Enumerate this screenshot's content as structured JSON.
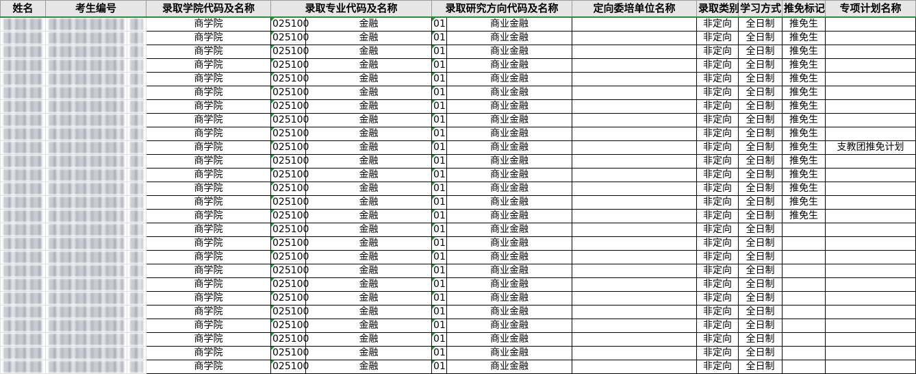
{
  "headers": [
    "姓名",
    "考生编号",
    "录取学院代码及名称",
    "录取专业代码及名称",
    "录取研究方向代码及名称",
    "定向委培单位名称",
    "录取类别",
    "学习方式",
    "推免标记",
    "专项计划名称"
  ],
  "default_row": {
    "college": "商学院",
    "major_code": "025100",
    "major_name": "金融",
    "dir_code": "01",
    "dir_name": "商业金融",
    "category": "非定向",
    "mode": "全日制"
  },
  "rows": [
    {
      "tuimian": "推免生",
      "plan": ""
    },
    {
      "tuimian": "推免生",
      "plan": ""
    },
    {
      "tuimian": "推免生",
      "plan": ""
    },
    {
      "tuimian": "推免生",
      "plan": ""
    },
    {
      "tuimian": "推免生",
      "plan": ""
    },
    {
      "tuimian": "推免生",
      "plan": ""
    },
    {
      "tuimian": "推免生",
      "plan": ""
    },
    {
      "tuimian": "推免生",
      "plan": ""
    },
    {
      "tuimian": "推免生",
      "plan": ""
    },
    {
      "tuimian": "推免生",
      "plan": "支教团推免计划"
    },
    {
      "tuimian": "推免生",
      "plan": ""
    },
    {
      "tuimian": "推免生",
      "plan": ""
    },
    {
      "tuimian": "推免生",
      "plan": ""
    },
    {
      "tuimian": "推免生",
      "plan": ""
    },
    {
      "tuimian": "推免生",
      "plan": ""
    },
    {
      "tuimian": "",
      "plan": ""
    },
    {
      "tuimian": "",
      "plan": ""
    },
    {
      "tuimian": "",
      "plan": ""
    },
    {
      "tuimian": "",
      "plan": ""
    },
    {
      "tuimian": "",
      "plan": ""
    },
    {
      "tuimian": "",
      "plan": ""
    },
    {
      "tuimian": "",
      "plan": ""
    },
    {
      "tuimian": "",
      "plan": ""
    },
    {
      "tuimian": "",
      "plan": ""
    },
    {
      "tuimian": "",
      "plan": ""
    },
    {
      "tuimian": "",
      "plan": ""
    }
  ],
  "colors": {
    "header_bg": "#e6e6e6",
    "selection_border": "#2a8a3a"
  }
}
